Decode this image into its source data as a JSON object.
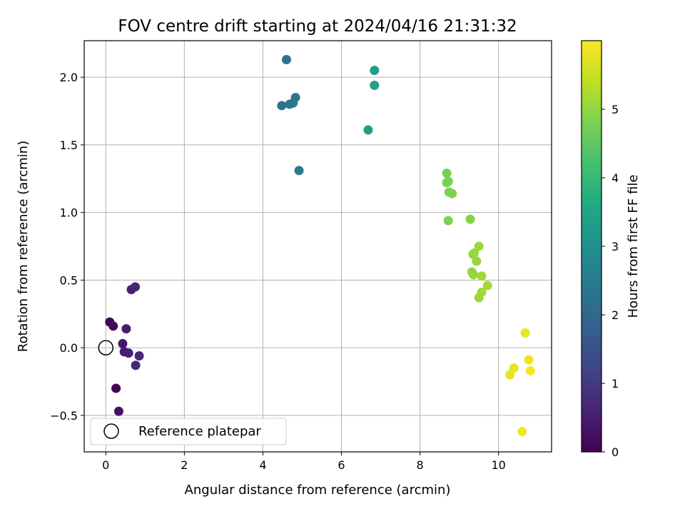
{
  "chart_data": {
    "type": "scatter",
    "title": "FOV centre drift starting at 2024/04/16 21:31:32",
    "xlabel": "Angular distance from reference (arcmin)",
    "ylabel": "Rotation from reference (arcmin)",
    "xlim": [
      -0.55,
      11.35
    ],
    "ylim": [
      -0.77,
      2.27
    ],
    "xticks": [
      "0",
      "2",
      "4",
      "6",
      "8",
      "10"
    ],
    "yticks": [
      "−0.5",
      "0.0",
      "0.5",
      "1.0",
      "1.5",
      "2.0"
    ],
    "xtick_values": [
      0,
      2,
      4,
      6,
      8,
      10
    ],
    "ytick_values": [
      -0.5,
      0.0,
      0.5,
      1.0,
      1.5,
      2.0
    ],
    "grid": true,
    "colormap": "viridis",
    "colorbar": {
      "label": "Hours from first FF file",
      "range": [
        0,
        6.0
      ],
      "ticks": [
        "0",
        "1",
        "2",
        "3",
        "4",
        "5"
      ],
      "tick_values": [
        0,
        1,
        2,
        3,
        4,
        5
      ]
    },
    "reference": {
      "x": 0,
      "y": 0,
      "label": "Reference platepar"
    },
    "legend_position": "lower-left",
    "points": [
      {
        "x": 0.1,
        "y": 0.19,
        "c": 0.05
      },
      {
        "x": 0.19,
        "y": 0.16,
        "c": 0.1
      },
      {
        "x": 0.26,
        "y": -0.3,
        "c": 0.02
      },
      {
        "x": 0.33,
        "y": -0.47,
        "c": 0.3
      },
      {
        "x": 0.43,
        "y": 0.03,
        "c": 0.35
      },
      {
        "x": 0.47,
        "y": -0.03,
        "c": 0.4
      },
      {
        "x": 0.52,
        "y": 0.14,
        "c": 0.45
      },
      {
        "x": 0.58,
        "y": -0.04,
        "c": 0.5
      },
      {
        "x": 0.65,
        "y": 0.43,
        "c": 0.55
      },
      {
        "x": 0.75,
        "y": 0.45,
        "c": 0.6
      },
      {
        "x": 0.76,
        "y": -0.13,
        "c": 0.65
      },
      {
        "x": 0.85,
        "y": -0.06,
        "c": 0.7
      },
      {
        "x": 4.48,
        "y": 1.79,
        "c": 2.3
      },
      {
        "x": 4.6,
        "y": 2.13,
        "c": 2.25
      },
      {
        "x": 4.68,
        "y": 1.8,
        "c": 2.35
      },
      {
        "x": 4.77,
        "y": 1.81,
        "c": 2.4
      },
      {
        "x": 4.83,
        "y": 1.85,
        "c": 2.38
      },
      {
        "x": 4.92,
        "y": 1.31,
        "c": 2.45
      },
      {
        "x": 6.68,
        "y": 1.61,
        "c": 3.35
      },
      {
        "x": 6.84,
        "y": 2.05,
        "c": 3.3
      },
      {
        "x": 6.84,
        "y": 1.94,
        "c": 3.4
      },
      {
        "x": 8.68,
        "y": 1.29,
        "c": 4.75
      },
      {
        "x": 8.68,
        "y": 1.22,
        "c": 4.8
      },
      {
        "x": 8.72,
        "y": 1.23,
        "c": 4.78
      },
      {
        "x": 8.74,
        "y": 1.15,
        "c": 4.82
      },
      {
        "x": 8.82,
        "y": 1.14,
        "c": 4.85
      },
      {
        "x": 8.72,
        "y": 0.94,
        "c": 4.8
      },
      {
        "x": 9.28,
        "y": 0.95,
        "c": 4.9
      },
      {
        "x": 9.32,
        "y": 0.56,
        "c": 5.0
      },
      {
        "x": 9.36,
        "y": 0.54,
        "c": 5.02
      },
      {
        "x": 9.35,
        "y": 0.69,
        "c": 5.0
      },
      {
        "x": 9.38,
        "y": 0.7,
        "c": 5.05
      },
      {
        "x": 9.44,
        "y": 0.64,
        "c": 5.05
      },
      {
        "x": 9.5,
        "y": 0.75,
        "c": 5.1
      },
      {
        "x": 9.5,
        "y": 0.37,
        "c": 5.1
      },
      {
        "x": 9.57,
        "y": 0.41,
        "c": 5.12
      },
      {
        "x": 9.57,
        "y": 0.53,
        "c": 5.15
      },
      {
        "x": 9.72,
        "y": 0.46,
        "c": 5.15
      },
      {
        "x": 10.29,
        "y": -0.2,
        "c": 5.75
      },
      {
        "x": 10.39,
        "y": -0.15,
        "c": 5.8
      },
      {
        "x": 10.6,
        "y": -0.62,
        "c": 5.9
      },
      {
        "x": 10.68,
        "y": 0.11,
        "c": 5.82
      },
      {
        "x": 10.77,
        "y": -0.09,
        "c": 5.88
      },
      {
        "x": 10.81,
        "y": -0.17,
        "c": 5.92
      }
    ]
  }
}
